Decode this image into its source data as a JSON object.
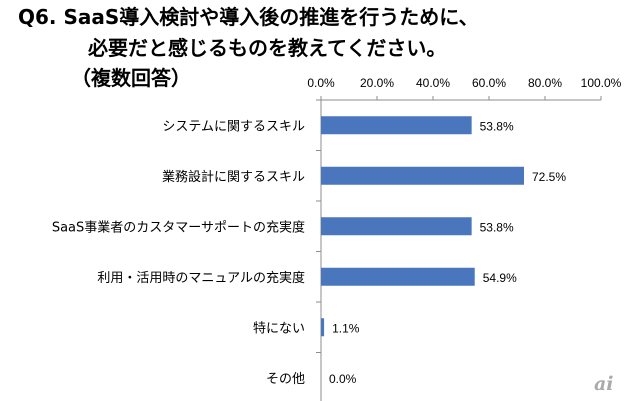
{
  "title": {
    "line1": "Q6. SaaS導入検討や導入後の推進を行うために、",
    "line2": "必要だと感じるものを教えてください。",
    "line3": "（複数回答）"
  },
  "logo_text": "ai",
  "chart_data": {
    "type": "bar",
    "orientation": "horizontal",
    "categories": [
      "システムに関するスキル",
      "業務設計に関するスキル",
      "SaaS事業者のカスタマーサポートの充実度",
      "利用・活用時のマニュアルの充実度",
      "特にない",
      "その他"
    ],
    "values": [
      53.8,
      72.5,
      53.8,
      54.9,
      1.1,
      0.0
    ],
    "data_labels": [
      "53.8%",
      "72.5%",
      "53.8%",
      "54.9%",
      "1.1%",
      "0.0%"
    ],
    "xlim": [
      0,
      100
    ],
    "xticks": [
      "0.0%",
      "20.0%",
      "40.0%",
      "60.0%",
      "80.0%",
      "100.0%"
    ],
    "x_axis_position": "top",
    "grid": false,
    "bar_color": "#4a76be"
  }
}
